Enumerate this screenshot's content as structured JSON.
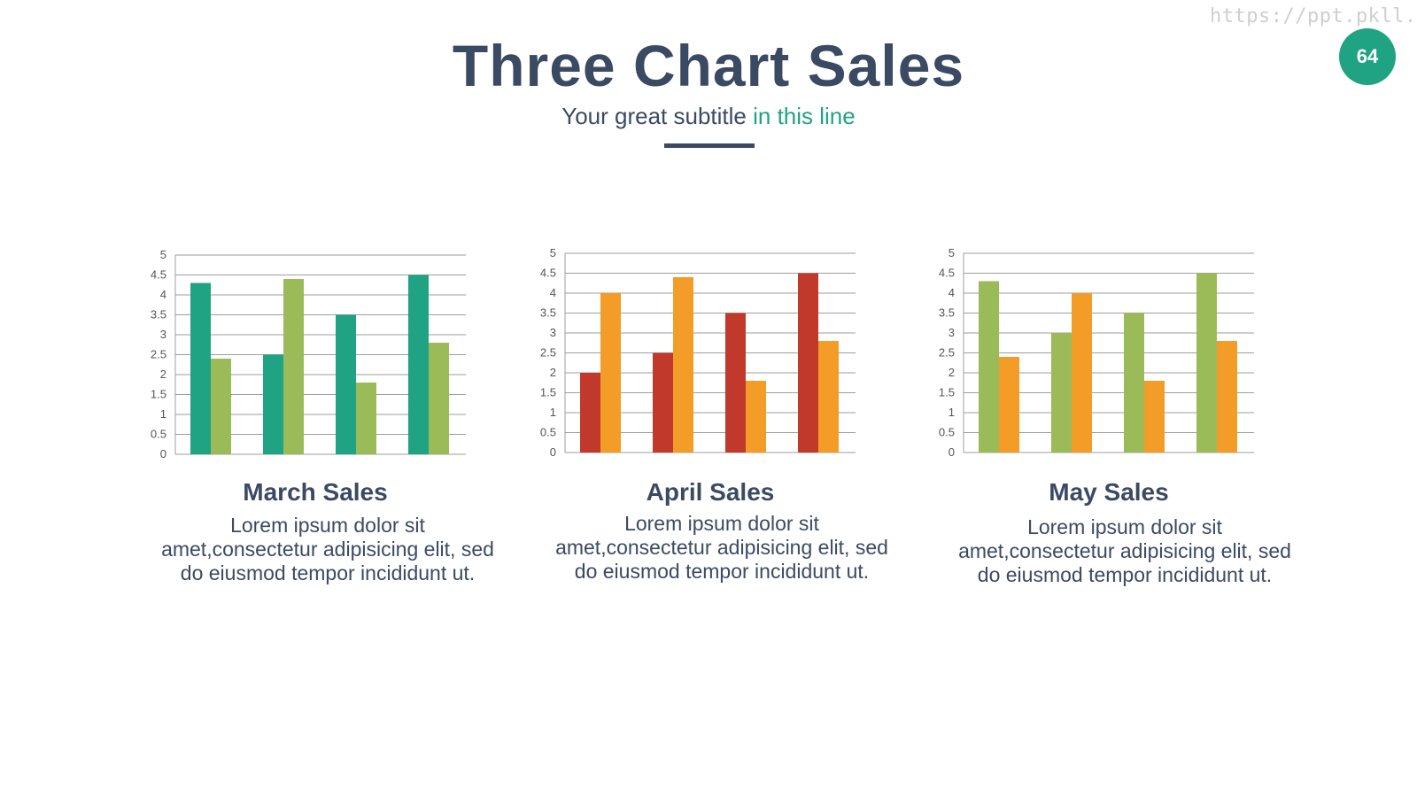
{
  "header": {
    "watermark": "https://ppt.pkll.de",
    "page_number": "64",
    "title": "Three Chart Sales",
    "subtitle_main": "Your great subtitle",
    "subtitle_accent": "in this line"
  },
  "colors": {
    "title": "#3b4a63",
    "accent": "#1fa383",
    "teal": "#1fa383",
    "light_green": "#9bbb59",
    "red": "#c0392b",
    "orange": "#f39c27",
    "grid": "#9e9e9e"
  },
  "charts": [
    {
      "heading": "March Sales",
      "description_line1": "Lorem ipsum dolor sit",
      "description_line2": "amet,consectetur adipisicing elit, sed",
      "description_line3": "do eiusmod tempor incididunt ut."
    },
    {
      "heading": "April Sales",
      "description_line1": "Lorem ipsum dolor sit",
      "description_line2": "amet,consectetur adipisicing elit, sed",
      "description_line3": "do eiusmod tempor incididunt ut."
    },
    {
      "heading": "May Sales",
      "description_line1": "Lorem ipsum dolor sit",
      "description_line2": "amet,consectetur adipisicing elit, sed",
      "description_line3": "do eiusmod tempor incididunt ut."
    }
  ],
  "chart_data": [
    {
      "type": "bar",
      "title": "March Sales",
      "categories": [
        "",
        "",
        "",
        ""
      ],
      "series": [
        {
          "values": [
            4.3,
            2.5,
            3.5,
            4.5
          ],
          "color": "#1fa383"
        },
        {
          "values": [
            2.4,
            4.4,
            1.8,
            2.8
          ],
          "color": "#9bbb59"
        }
      ],
      "ylim": [
        0,
        5
      ],
      "yticks": [
        "0",
        "0.5",
        "1",
        "1.5",
        "2",
        "2.5",
        "3",
        "3.5",
        "4",
        "4.5",
        "5"
      ],
      "grid": true,
      "legend": "none"
    },
    {
      "type": "bar",
      "title": "April Sales",
      "categories": [
        "",
        "",
        "",
        ""
      ],
      "series": [
        {
          "values": [
            2.0,
            2.5,
            3.5,
            4.5
          ],
          "color": "#c0392b"
        },
        {
          "values": [
            4.0,
            4.4,
            1.8,
            2.8
          ],
          "color": "#f39c27"
        }
      ],
      "ylim": [
        0,
        5
      ],
      "yticks": [
        "0",
        "0.5",
        "1",
        "1.5",
        "2",
        "2.5",
        "3",
        "3.5",
        "4",
        "4.5",
        "5"
      ],
      "grid": true,
      "legend": "none"
    },
    {
      "type": "bar",
      "title": "May Sales",
      "categories": [
        "",
        "",
        "",
        ""
      ],
      "series": [
        {
          "values": [
            4.3,
            3.0,
            3.5,
            4.5
          ],
          "color": "#9bbb59"
        },
        {
          "values": [
            2.4,
            4.0,
            1.8,
            2.8
          ],
          "color": "#f39c27"
        }
      ],
      "ylim": [
        0,
        5
      ],
      "yticks": [
        "0",
        "0.5",
        "1",
        "1.5",
        "2",
        "2.5",
        "3",
        "3.5",
        "4",
        "4.5",
        "5"
      ],
      "grid": true,
      "legend": "none"
    }
  ]
}
